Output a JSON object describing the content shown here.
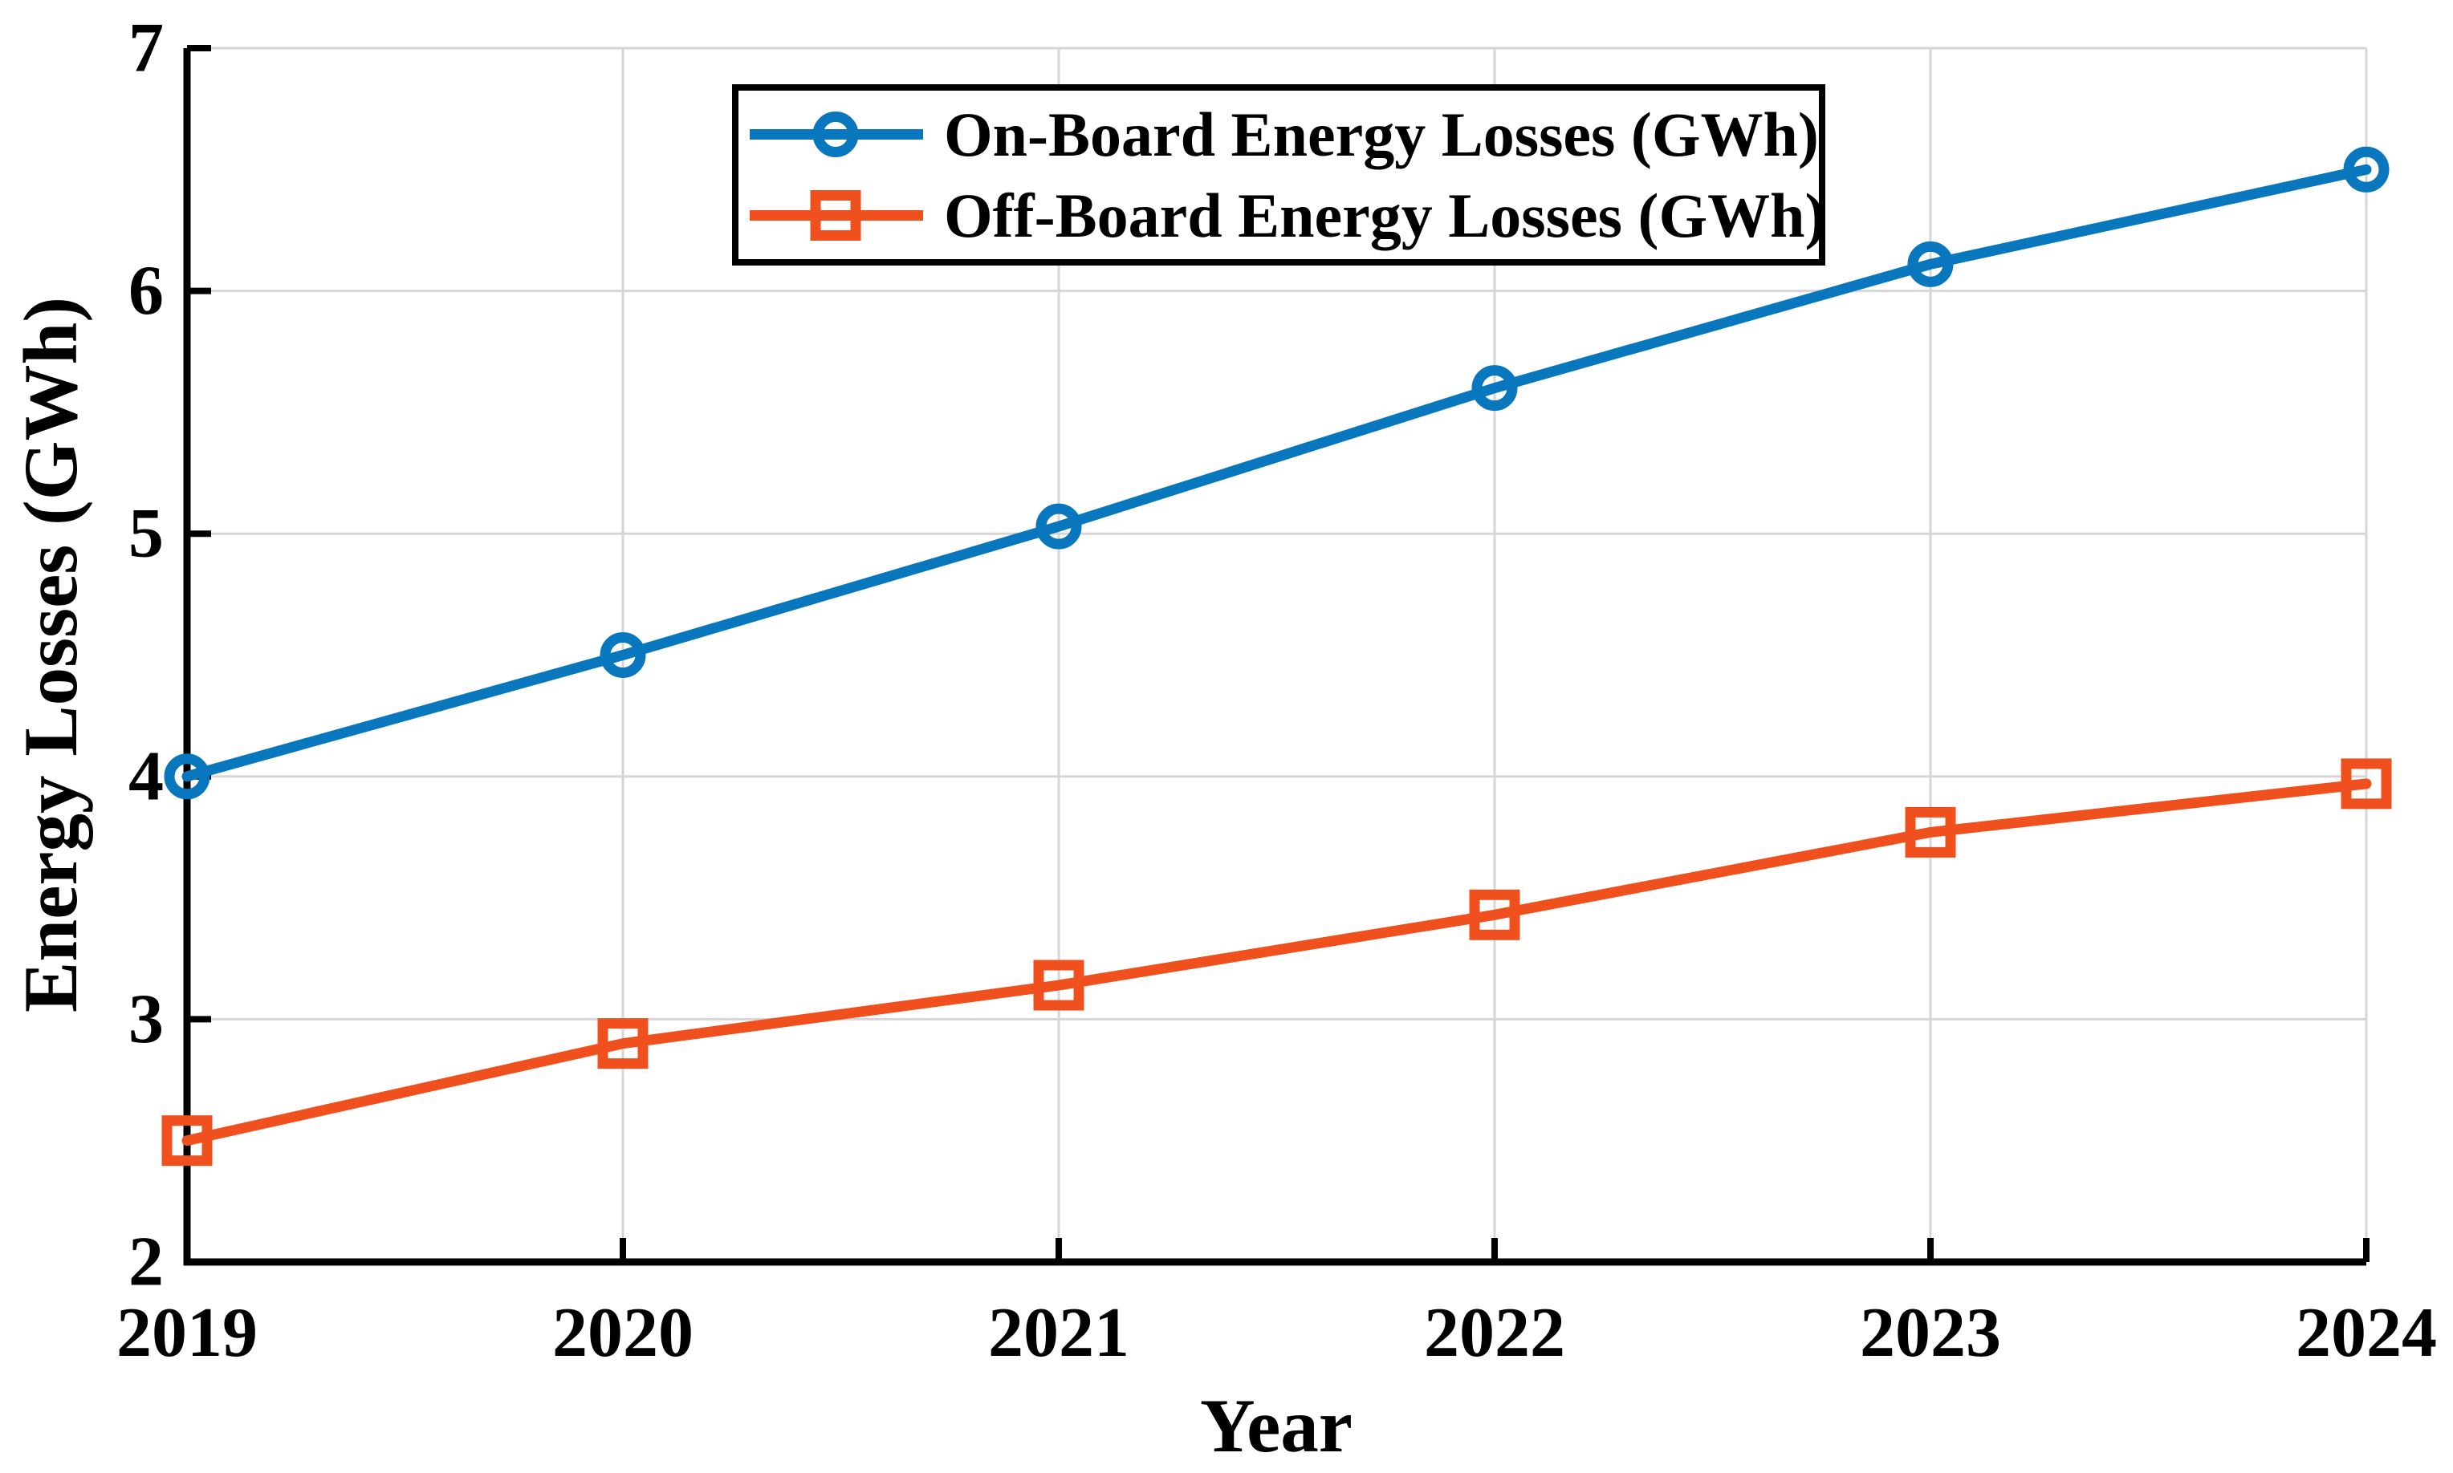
{
  "chart_data": {
    "type": "line",
    "x": [
      2019,
      2020,
      2021,
      2022,
      2023,
      2024
    ],
    "series": [
      {
        "name": "On-Board Energy Losses (GWh)",
        "values": [
          4.0,
          4.5,
          5.03,
          5.6,
          6.11,
          6.5
        ],
        "color": "#0877be",
        "marker": "circle"
      },
      {
        "name": "Off-Board Energy Losses (GWh)",
        "values": [
          2.5,
          2.9,
          3.14,
          3.43,
          3.77,
          3.97
        ],
        "color": "#f0501e",
        "marker": "square"
      }
    ],
    "xlabel": "Year",
    "ylabel": "Energy Losses (GWh)",
    "xticks": [
      2019,
      2020,
      2021,
      2022,
      2023,
      2024
    ],
    "yticks": [
      2,
      3,
      4,
      5,
      6,
      7
    ],
    "ylim": [
      2,
      7
    ],
    "grid": true,
    "legend_position": "top-center",
    "colors": {
      "axis": "#000000",
      "grid": "#d6d6d6",
      "background": "#ffffff"
    }
  }
}
